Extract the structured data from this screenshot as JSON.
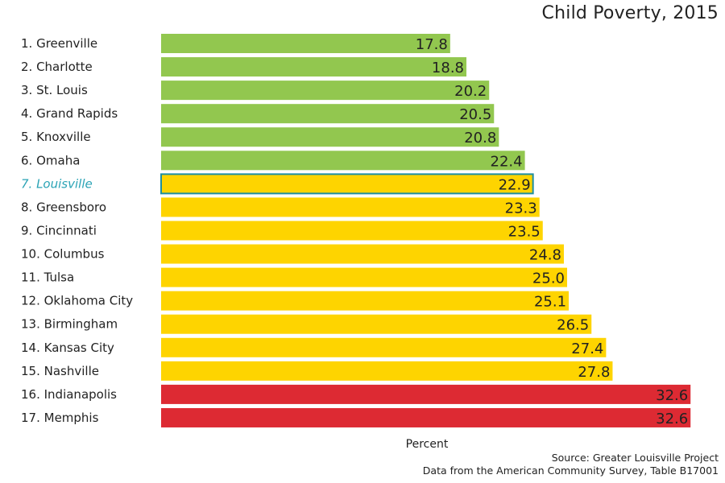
{
  "chart_data": {
    "type": "bar",
    "orientation": "horizontal",
    "title": "Child Poverty, 2015",
    "xlabel": "Percent",
    "ylabel": "",
    "xlim": [
      0,
      33
    ],
    "grid": false,
    "highlight_category": "7. Louisville",
    "categories": [
      "1. Greenville",
      "2. Charlotte",
      "3. St. Louis",
      "4. Grand Rapids",
      "5. Knoxville",
      "6. Omaha",
      "7. Louisville",
      "8. Greensboro",
      "9. Cincinnati",
      "10. Columbus",
      "11. Tulsa",
      "12. Oklahoma City",
      "13. Birmingham",
      "14. Kansas City",
      "15. Nashville",
      "16. Indianapolis",
      "17. Memphis"
    ],
    "values": [
      17.8,
      18.8,
      20.2,
      20.5,
      20.8,
      22.4,
      22.9,
      23.3,
      23.5,
      24.8,
      25.0,
      25.1,
      26.5,
      27.4,
      27.8,
      32.6,
      32.6
    ],
    "value_labels": [
      "17.8",
      "18.8",
      "20.2",
      "20.5",
      "20.8",
      "22.4",
      "22.9",
      "23.3",
      "23.5",
      "24.8",
      "25.0",
      "25.1",
      "26.5",
      "27.4",
      "27.8",
      "32.6",
      "32.6"
    ],
    "tiers": [
      "green",
      "green",
      "green",
      "green",
      "green",
      "green",
      "yellow",
      "yellow",
      "yellow",
      "yellow",
      "yellow",
      "yellow",
      "yellow",
      "yellow",
      "yellow",
      "red",
      "red"
    ]
  },
  "colors": {
    "green": "#92c74f",
    "yellow": "#fed400",
    "red": "#dd2a33",
    "highlight_text": "#2aa3b5",
    "highlight_outline": "#1f8f9f"
  },
  "source": {
    "line1": "Source: Greater Louisville Project",
    "line2": "Data from the American Community Survey, Table B17001"
  }
}
